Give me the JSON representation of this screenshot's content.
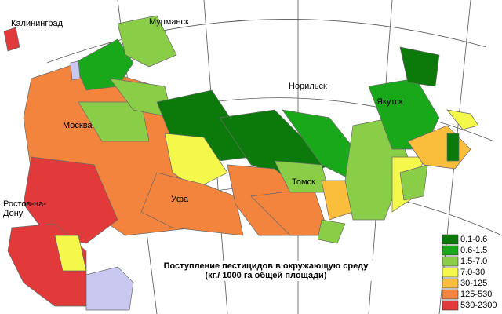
{
  "cities": [
    "Калининград",
    "Мурманск",
    "Норильск",
    "Якутск",
    "Москва",
    "Томск",
    "Уфа",
    "Ростов-на-",
    "Дону"
  ],
  "title": [
    "Поступление пестицидов в окружающую среду",
    "(кг./ 1000 га общей площади)"
  ],
  "legend": [
    {
      "label": "0.1-0.6",
      "color": "#0b7a0b"
    },
    {
      "label": "0.6-1.5",
      "color": "#19a819"
    },
    {
      "label": "1.5-7.0",
      "color": "#8acd46"
    },
    {
      "label": "7.0-30",
      "color": "#f4f84a"
    },
    {
      "label": "30-125",
      "color": "#fbbd3c"
    },
    {
      "label": "125-530",
      "color": "#f3843e"
    },
    {
      "label": "530-2300",
      "color": "#e2393a"
    }
  ]
}
